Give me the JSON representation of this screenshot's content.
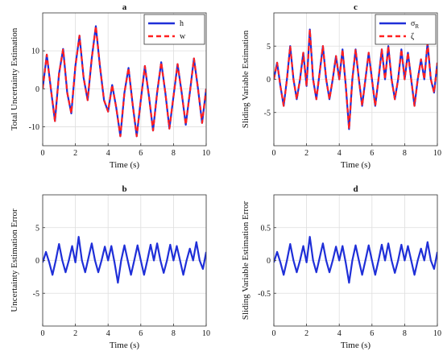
{
  "chart_data": [
    {
      "type": "line",
      "panel": "a",
      "title": "a",
      "xlabel": "Time (s)",
      "ylabel": "Total Uncertainty Estimation",
      "xlim": [
        0,
        10
      ],
      "ylim": [
        -15,
        20
      ],
      "xticks": [
        0,
        2,
        4,
        6,
        8,
        10
      ],
      "yticks": [
        -10,
        0,
        10
      ],
      "grid": true,
      "legend_position": "top-right",
      "x": [
        0,
        0.25,
        0.5,
        0.75,
        1.0,
        1.25,
        1.5,
        1.75,
        2.0,
        2.25,
        2.5,
        2.75,
        3.0,
        3.25,
        3.5,
        3.75,
        4.0,
        4.25,
        4.5,
        4.75,
        5.0,
        5.25,
        5.5,
        5.75,
        6.0,
        6.25,
        6.5,
        6.75,
        7.0,
        7.25,
        7.5,
        7.75,
        8.0,
        8.25,
        8.5,
        8.75,
        9.0,
        9.25,
        9.5,
        9.75,
        10.0
      ],
      "series": [
        {
          "name": "h",
          "color": "#1f2fd8",
          "style": "solid",
          "values": [
            0,
            9,
            0,
            -8.5,
            4,
            10.5,
            -1,
            -6.5,
            6,
            14,
            3,
            -3,
            8,
            16.5,
            6,
            -3,
            -6,
            1,
            -5,
            -12.5,
            -1,
            5.5,
            -4,
            -12.5,
            -3,
            6,
            -2,
            -11,
            -1,
            7,
            -1,
            -10.5,
            -2,
            6.5,
            -1,
            -9.5,
            -1,
            8,
            0,
            -9,
            0
          ]
        },
        {
          "name": "w",
          "color": "#ff2020",
          "style": "dashed",
          "values": [
            0,
            9,
            0,
            -8.5,
            4,
            10.5,
            -1,
            -6.5,
            6,
            14,
            3,
            -3,
            8,
            16.5,
            6,
            -3,
            -6,
            1,
            -5,
            -12.5,
            -1,
            5.5,
            -4,
            -12.5,
            -3,
            6,
            -2,
            -11,
            -1,
            7,
            -1,
            -10.5,
            -2,
            6.5,
            -1,
            -9.5,
            -1,
            8,
            0,
            -9,
            0
          ]
        }
      ]
    },
    {
      "type": "line",
      "panel": "c",
      "title": "c",
      "xlabel": "Time (s)",
      "ylabel": "Sliding Variable Estimation",
      "xlim": [
        0,
        10
      ],
      "ylim": [
        -10,
        10
      ],
      "xticks": [
        0,
        2,
        4,
        6,
        8,
        10
      ],
      "yticks": [
        -5,
        0,
        5
      ],
      "grid": true,
      "legend_position": "top-right",
      "x": [
        0,
        0.2,
        0.4,
        0.6,
        0.8,
        1.0,
        1.2,
        1.4,
        1.6,
        1.8,
        2.0,
        2.2,
        2.4,
        2.6,
        2.8,
        3.0,
        3.2,
        3.4,
        3.6,
        3.8,
        4.0,
        4.2,
        4.4,
        4.6,
        4.8,
        5.0,
        5.2,
        5.4,
        5.6,
        5.8,
        6.0,
        6.2,
        6.4,
        6.6,
        6.8,
        7.0,
        7.2,
        7.4,
        7.6,
        7.8,
        8.0,
        8.2,
        8.4,
        8.6,
        8.8,
        9.0,
        9.2,
        9.4,
        9.6,
        9.8,
        10.0
      ],
      "series": [
        {
          "name": "σ_R",
          "color": "#1f2fd8",
          "style": "solid",
          "values": [
            0,
            2.5,
            -1,
            -4,
            0,
            5,
            0,
            -3,
            0,
            4,
            -1,
            7.5,
            0,
            -3,
            1,
            5,
            0,
            -3,
            0,
            3.5,
            0,
            4.5,
            -1,
            -7.5,
            0,
            4.5,
            0,
            -4,
            0,
            4,
            0,
            -4,
            0,
            4.5,
            0,
            5,
            0,
            -3,
            0,
            4.5,
            0,
            4,
            0,
            -4,
            0,
            3,
            0,
            5.5,
            0,
            -2,
            2.5
          ]
        },
        {
          "name": "ζ",
          "color": "#ff2020",
          "style": "dashed",
          "values": [
            0,
            2.5,
            -1,
            -4,
            0,
            5,
            0,
            -3,
            0,
            4,
            -1,
            7.5,
            0,
            -3,
            1,
            5,
            0,
            -3,
            0,
            3.5,
            0,
            4.5,
            -1,
            -7.5,
            0,
            4.5,
            0,
            -4,
            0,
            4,
            0,
            -4,
            0,
            4.5,
            0,
            5,
            0,
            -3,
            0,
            4.5,
            0,
            4,
            0,
            -4,
            0,
            3,
            0,
            5.5,
            0,
            -2,
            2.5
          ]
        }
      ]
    },
    {
      "type": "line",
      "panel": "b",
      "title": "b",
      "xlabel": "Time (s)",
      "ylabel": "Uncertainty Estimation Error",
      "xlim": [
        0,
        10
      ],
      "ylim": [
        -10,
        10
      ],
      "xticks": [
        0,
        2,
        4,
        6,
        8,
        10
      ],
      "yticks": [
        -5,
        0,
        5
      ],
      "grid": true,
      "x": [
        0,
        0.2,
        0.4,
        0.6,
        0.8,
        1.0,
        1.2,
        1.4,
        1.6,
        1.8,
        2.0,
        2.2,
        2.4,
        2.6,
        2.8,
        3.0,
        3.2,
        3.4,
        3.6,
        3.8,
        4.0,
        4.2,
        4.4,
        4.6,
        4.8,
        5.0,
        5.2,
        5.4,
        5.6,
        5.8,
        6.0,
        6.2,
        6.4,
        6.6,
        6.8,
        7.0,
        7.2,
        7.4,
        7.6,
        7.8,
        8.0,
        8.2,
        8.4,
        8.6,
        8.8,
        9.0,
        9.2,
        9.4,
        9.6,
        9.8,
        10.0
      ],
      "series": [
        {
          "name": "",
          "color": "#1f2fd8",
          "style": "solid",
          "values": [
            -0.3,
            1.3,
            -0.3,
            -2.2,
            0,
            2.5,
            0,
            -1.8,
            0,
            2.2,
            -0.3,
            3.6,
            0,
            -1.8,
            0.4,
            2.6,
            0,
            -1.8,
            0,
            2.1,
            0,
            2.2,
            -0.4,
            -3.4,
            0,
            2.3,
            0,
            -2.2,
            0,
            2.3,
            0,
            -2.2,
            0,
            2.4,
            0,
            2.6,
            0,
            -1.9,
            0,
            2.4,
            0,
            2.2,
            0,
            -2.2,
            0,
            1.8,
            0,
            2.8,
            0,
            -1.3,
            1.3
          ]
        }
      ]
    },
    {
      "type": "line",
      "panel": "d",
      "title": "d",
      "xlabel": "Time (s)",
      "ylabel": "Sliding Variable Estimation Error",
      "xlim": [
        0,
        10
      ],
      "ylim": [
        -1,
        1
      ],
      "xticks": [
        0,
        2,
        4,
        6,
        8,
        10
      ],
      "yticks": [
        -0.5,
        0,
        0.5
      ],
      "grid": true,
      "x": [
        0,
        0.2,
        0.4,
        0.6,
        0.8,
        1.0,
        1.2,
        1.4,
        1.6,
        1.8,
        2.0,
        2.2,
        2.4,
        2.6,
        2.8,
        3.0,
        3.2,
        3.4,
        3.6,
        3.8,
        4.0,
        4.2,
        4.4,
        4.6,
        4.8,
        5.0,
        5.2,
        5.4,
        5.6,
        5.8,
        6.0,
        6.2,
        6.4,
        6.6,
        6.8,
        7.0,
        7.2,
        7.4,
        7.6,
        7.8,
        8.0,
        8.2,
        8.4,
        8.6,
        8.8,
        9.0,
        9.2,
        9.4,
        9.6,
        9.8,
        10.0
      ],
      "series": [
        {
          "name": "",
          "color": "#1f2fd8",
          "style": "solid",
          "values": [
            -0.03,
            0.13,
            -0.03,
            -0.22,
            0,
            0.25,
            0,
            -0.18,
            0,
            0.22,
            -0.03,
            0.36,
            0,
            -0.18,
            0.04,
            0.26,
            0,
            -0.18,
            0,
            0.21,
            0,
            0.22,
            -0.04,
            -0.34,
            0,
            0.23,
            0,
            -0.22,
            0,
            0.23,
            0,
            -0.22,
            0,
            0.24,
            0,
            0.26,
            0,
            -0.19,
            0,
            0.24,
            0,
            0.22,
            0,
            -0.22,
            0,
            0.18,
            0,
            0.28,
            0,
            -0.13,
            0.13
          ]
        }
      ]
    }
  ]
}
